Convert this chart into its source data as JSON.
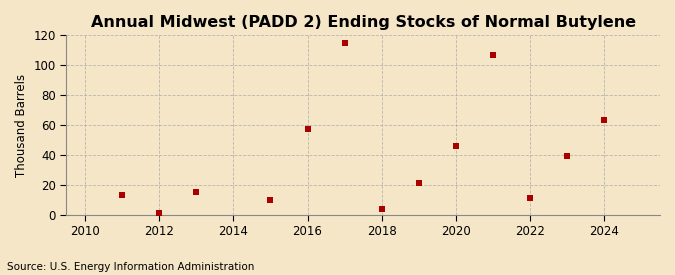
{
  "title": "Annual Midwest (PADD 2) Ending Stocks of Normal Butylene",
  "ylabel": "Thousand Barrels",
  "source": "Source: U.S. Energy Information Administration",
  "years": [
    2011,
    2012,
    2013,
    2015,
    2016,
    2017,
    2018,
    2019,
    2020,
    2021,
    2022,
    2023,
    2024
  ],
  "values": [
    13,
    1,
    15,
    10,
    57,
    115,
    4,
    21,
    46,
    107,
    11,
    39,
    63
  ],
  "xlim": [
    2009.5,
    2025.5
  ],
  "ylim": [
    0,
    120
  ],
  "yticks": [
    0,
    20,
    40,
    60,
    80,
    100,
    120
  ],
  "xticks": [
    2010,
    2012,
    2014,
    2016,
    2018,
    2020,
    2022,
    2024
  ],
  "marker_color": "#aa0000",
  "marker": "s",
  "marker_size": 4,
  "bg_color": "#f5e6c8",
  "plot_bg_color": "#f5e6c8",
  "title_fontsize": 11.5,
  "label_fontsize": 8.5,
  "tick_fontsize": 8.5,
  "source_fontsize": 7.5,
  "grid_color": "#aaaaaa",
  "grid_style": "--",
  "grid_alpha": 0.8
}
